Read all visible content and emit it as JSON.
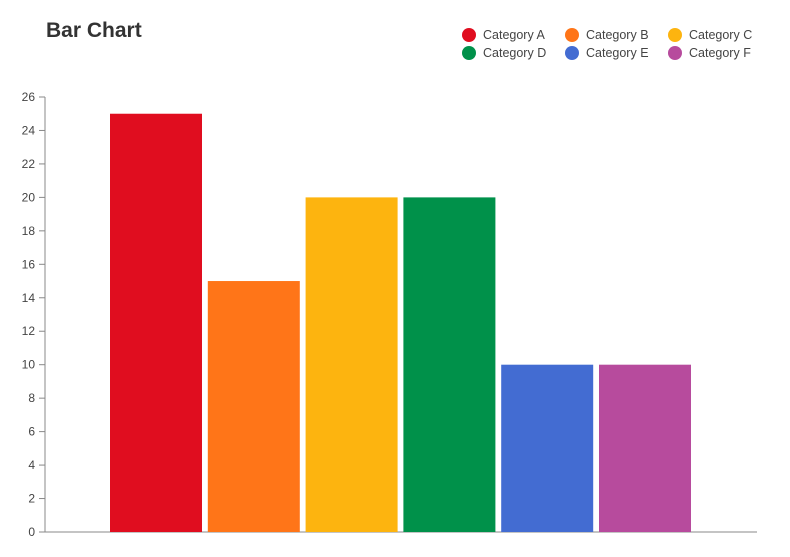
{
  "chart_data": {
    "type": "bar",
    "title": "Bar Chart",
    "xlabel": "",
    "ylabel": "",
    "categories": [
      "Category A",
      "Category B",
      "Category C",
      "Category D",
      "Category E",
      "Category F"
    ],
    "values": [
      25,
      15,
      20,
      20,
      10,
      10
    ],
    "colors": [
      "#e00d1f",
      "#ff7518",
      "#fdb40f",
      "#00914a",
      "#436cd2",
      "#b74b9d"
    ],
    "ylim": [
      0,
      26
    ],
    "yticks": [
      0,
      2,
      4,
      6,
      8,
      10,
      12,
      14,
      16,
      18,
      20,
      22,
      24,
      26
    ],
    "grid": false,
    "legend_position": "top-right"
  }
}
